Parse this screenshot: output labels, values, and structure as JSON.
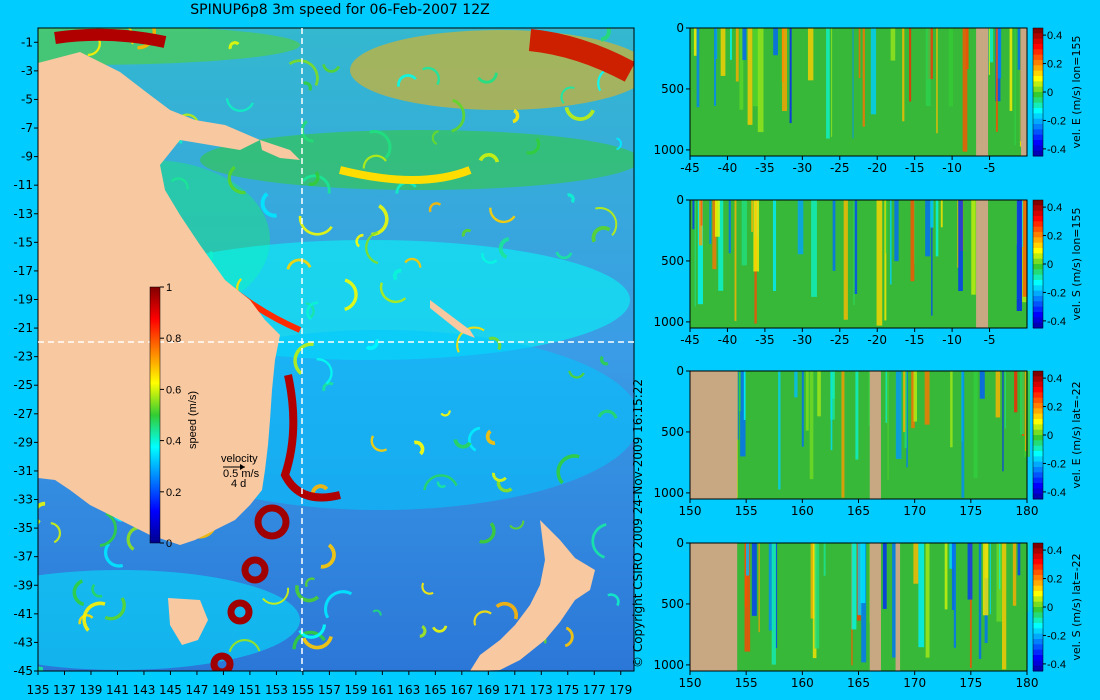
{
  "title": "SPINUP6p8 3m speed for 06-Feb-2007 12Z",
  "copyright": "© Copyright CSIRO 2009   24-Nov-2009 16:15:22",
  "map": {
    "x_ticks": [
      "135",
      "137",
      "139",
      "141",
      "143",
      "145",
      "147",
      "149",
      "151",
      "153",
      "155",
      "157",
      "159",
      "161",
      "163",
      "165",
      "167",
      "169",
      "171",
      "173",
      "175",
      "177",
      "179"
    ],
    "y_ticks": [
      "-1",
      "-3",
      "-5",
      "-7",
      "-9",
      "-11",
      "-13",
      "-15",
      "-17",
      "-19",
      "-21",
      "-23",
      "-25",
      "-27",
      "-29",
      "-31",
      "-33",
      "-35",
      "-37",
      "-39",
      "-41",
      "-43",
      "-45"
    ],
    "colorbar_label": "speed (m/s)",
    "colorbar_ticks": [
      "1",
      "0.8",
      "0.6",
      "0.4",
      "0.2",
      "0"
    ],
    "velocity_key": {
      "label": "velocity",
      "speed": "0.5 m/s",
      "days": "4 d"
    }
  },
  "chart_data": [
    {
      "type": "heatmap",
      "title": "SPINUP6p8 3m speed for 06-Feb-2007 12Z",
      "xlabel": "",
      "ylabel": "",
      "xlim": [
        135,
        180
      ],
      "ylim": [
        -45,
        0
      ],
      "colorbar": {
        "label": "speed (m/s)",
        "range": [
          0,
          1
        ]
      },
      "section_lines": {
        "lon": 155,
        "lat": -22
      }
    },
    {
      "type": "heatmap",
      "colorbar_label": "vel. E (m/s) lon=155",
      "x_ticks": [
        "-45",
        "-40",
        "-35",
        "-30",
        "-25",
        "-20",
        "-15",
        "-10",
        "-5"
      ],
      "y_ticks": [
        "0",
        "500",
        "1000"
      ],
      "cbar_ticks": [
        "0.4",
        "0.2",
        "0",
        "-0.2",
        "-0.4"
      ],
      "xlim": [
        -45,
        0
      ],
      "ylim": [
        1050,
        0
      ],
      "clim": [
        -0.45,
        0.45
      ]
    },
    {
      "type": "heatmap",
      "colorbar_label": "vel. S (m/s) lon=155",
      "x_ticks": [
        "-45",
        "-40",
        "-35",
        "-30",
        "-25",
        "-20",
        "-15",
        "-10",
        "-5"
      ],
      "y_ticks": [
        "0",
        "500",
        "1000"
      ],
      "cbar_ticks": [
        "0.4",
        "0.2",
        "0",
        "-0.2",
        "-0.4"
      ],
      "xlim": [
        -45,
        0
      ],
      "ylim": [
        1050,
        0
      ],
      "clim": [
        -0.45,
        0.45
      ]
    },
    {
      "type": "heatmap",
      "colorbar_label": "vel. E (m/s) lat=-22",
      "x_ticks": [
        "150",
        "155",
        "160",
        "165",
        "170",
        "175",
        "180"
      ],
      "y_ticks": [
        "0",
        "500",
        "1000"
      ],
      "cbar_ticks": [
        "0.4",
        "0.2",
        "0",
        "-0.2",
        "-0.4"
      ],
      "xlim": [
        150,
        180
      ],
      "ylim": [
        1050,
        0
      ],
      "clim": [
        -0.45,
        0.45
      ]
    },
    {
      "type": "heatmap",
      "colorbar_label": "vel. S (m/s) lat=-22",
      "x_ticks": [
        "150",
        "155",
        "160",
        "165",
        "170",
        "175",
        "180"
      ],
      "y_ticks": [
        "0",
        "500",
        "1000"
      ],
      "cbar_ticks": [
        "0.4",
        "0.2",
        "0",
        "-0.2",
        "-0.4"
      ],
      "xlim": [
        150,
        180
      ],
      "ylim": [
        1050,
        0
      ],
      "clim": [
        -0.45,
        0.45
      ]
    }
  ],
  "colors": {
    "background": "#00ccff",
    "land": "#f8c8a0",
    "section_land": "#c8a882",
    "ocean_base": "#2f8fe0",
    "section_base": "#38b838"
  }
}
